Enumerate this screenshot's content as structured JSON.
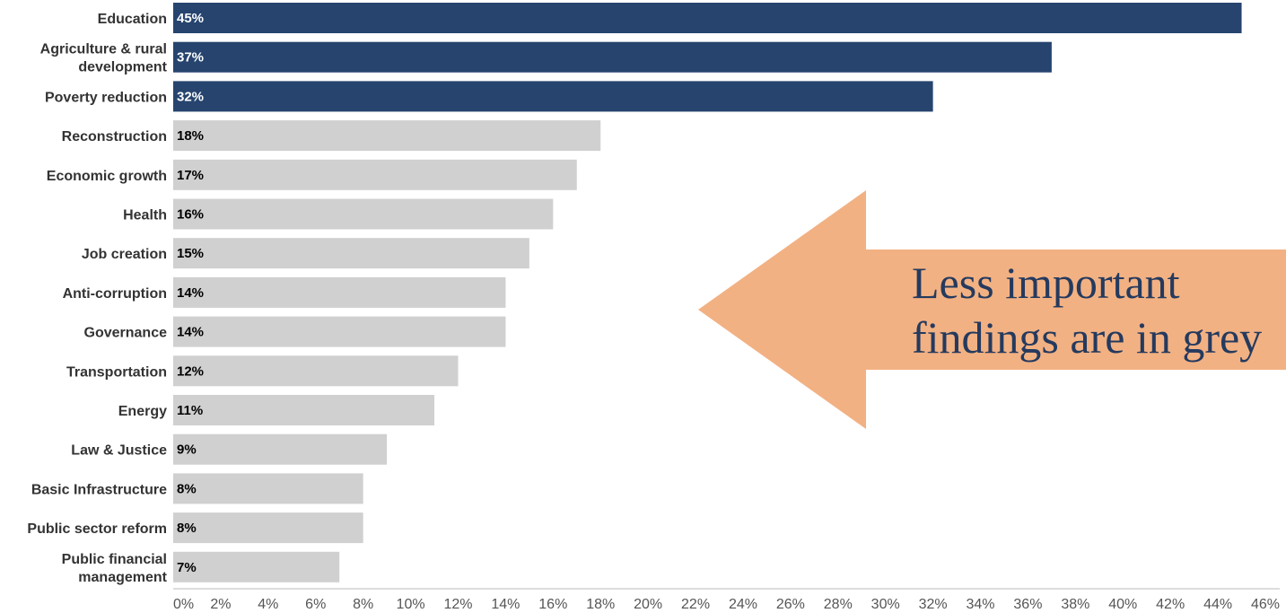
{
  "chart_data": {
    "type": "bar",
    "orientation": "horizontal",
    "categories": [
      [
        "Education"
      ],
      [
        "Agriculture & rural",
        "development"
      ],
      [
        "Poverty reduction"
      ],
      [
        "Reconstruction"
      ],
      [
        "Economic growth"
      ],
      [
        "Health"
      ],
      [
        "Job creation"
      ],
      [
        "Anti-corruption"
      ],
      [
        "Governance"
      ],
      [
        "Transportation"
      ],
      [
        "Energy"
      ],
      [
        "Law & Justice"
      ],
      [
        "Basic Infrastructure"
      ],
      [
        "Public sector reform"
      ],
      [
        "Public financial",
        "management"
      ]
    ],
    "values": [
      45,
      37,
      32,
      18,
      17,
      16,
      15,
      14,
      14,
      12,
      11,
      9,
      8,
      8,
      7
    ],
    "value_labels": [
      "45%",
      "37%",
      "32%",
      "18%",
      "17%",
      "16%",
      "15%",
      "14%",
      "14%",
      "12%",
      "11%",
      "9%",
      "8%",
      "8%",
      "7%"
    ],
    "highlighted": [
      true,
      true,
      true,
      false,
      false,
      false,
      false,
      false,
      false,
      false,
      false,
      false,
      false,
      false,
      false
    ],
    "xlim": [
      0,
      46
    ],
    "x_ticks": [
      "0%",
      "2%",
      "4%",
      "6%",
      "8%",
      "10%",
      "12%",
      "14%",
      "16%",
      "18%",
      "20%",
      "22%",
      "24%",
      "26%",
      "28%",
      "30%",
      "32%",
      "34%",
      "36%",
      "38%",
      "40%",
      "42%",
      "44%",
      "46%"
    ],
    "grid": false,
    "colors": {
      "highlight": "#26446e",
      "muted": "#d0d0d0",
      "highlight_label": "#ffffff",
      "muted_label": "#000000",
      "axis": "#bbbbbb"
    }
  },
  "callout": {
    "lines": [
      "Less important",
      "findings are in grey"
    ],
    "arrow_color": "#f2b183",
    "text_color": "#253a5e"
  }
}
